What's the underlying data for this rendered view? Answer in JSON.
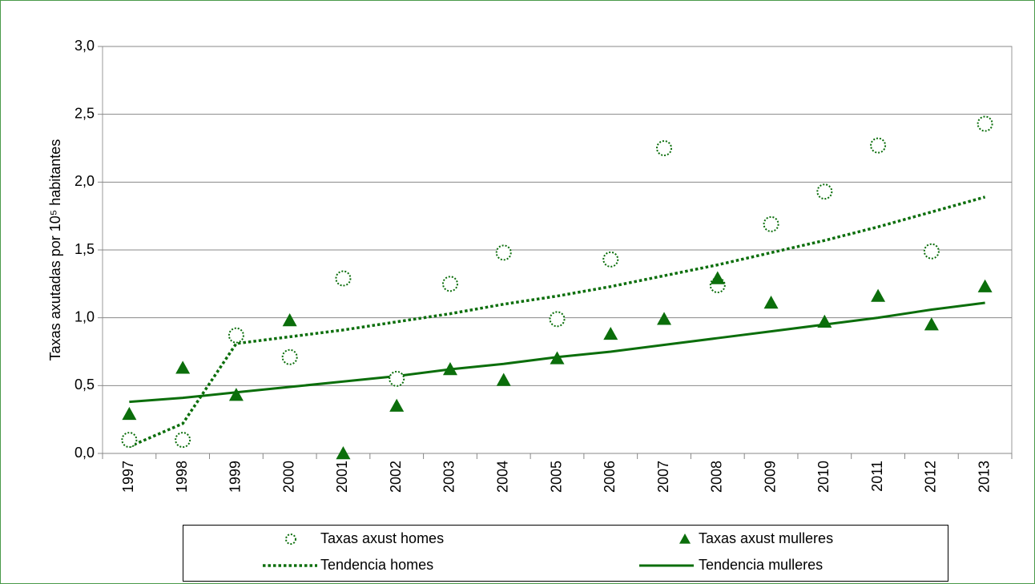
{
  "chart_data": {
    "type": "line",
    "y_label": "Taxas axutadas  por 10⁵ habitantes",
    "categories": [
      "1997",
      "1998",
      "1999",
      "2000",
      "2001",
      "2002",
      "2003",
      "2004",
      "2005",
      "2006",
      "2007",
      "2008",
      "2009",
      "2010",
      "2011",
      "2012",
      "2013"
    ],
    "ylim": [
      0,
      3
    ],
    "yticks": [
      {
        "value": 0,
        "label": "0,0"
      },
      {
        "value": 0.5,
        "label": "0,5"
      },
      {
        "value": 1,
        "label": "1,0"
      },
      {
        "value": 1.5,
        "label": "1,5"
      },
      {
        "value": 2,
        "label": "2,0"
      },
      {
        "value": 2.5,
        "label": "2,5"
      },
      {
        "value": 3,
        "label": "3,0"
      }
    ],
    "grid": true,
    "legend": "bottom",
    "series": [
      {
        "name": "Taxas axust homes",
        "color": "#0b6e0b",
        "style": "circle",
        "values": [
          0.1,
          0.1,
          0.87,
          0.71,
          1.29,
          0.55,
          1.25,
          1.48,
          0.99,
          1.43,
          2.25,
          1.24,
          1.69,
          1.93,
          2.27,
          1.49,
          2.43
        ]
      },
      {
        "name": "Taxas axust mulleres",
        "color": "#0b6e0b",
        "style": "triangle",
        "values": [
          0.29,
          0.63,
          0.43,
          0.98,
          0.0,
          0.35,
          0.62,
          0.54,
          0.7,
          0.88,
          0.99,
          1.29,
          1.11,
          0.97,
          1.16,
          0.95,
          1.23
        ]
      },
      {
        "name": "Tendencia homes",
        "color": "#0b6e0b",
        "style": "dotted-line",
        "values": [
          0.05,
          0.22,
          0.81,
          0.86,
          0.91,
          0.97,
          1.03,
          1.1,
          1.16,
          1.23,
          1.31,
          1.39,
          1.48,
          1.57,
          1.67,
          1.78,
          1.89
        ]
      },
      {
        "name": "Tendencia mulleres",
        "color": "#0b6e0b",
        "style": "solid-line",
        "values": [
          0.38,
          0.41,
          0.45,
          0.49,
          0.53,
          0.57,
          0.62,
          0.66,
          0.71,
          0.75,
          0.8,
          0.85,
          0.9,
          0.95,
          1.0,
          1.06,
          1.11
        ]
      }
    ]
  }
}
